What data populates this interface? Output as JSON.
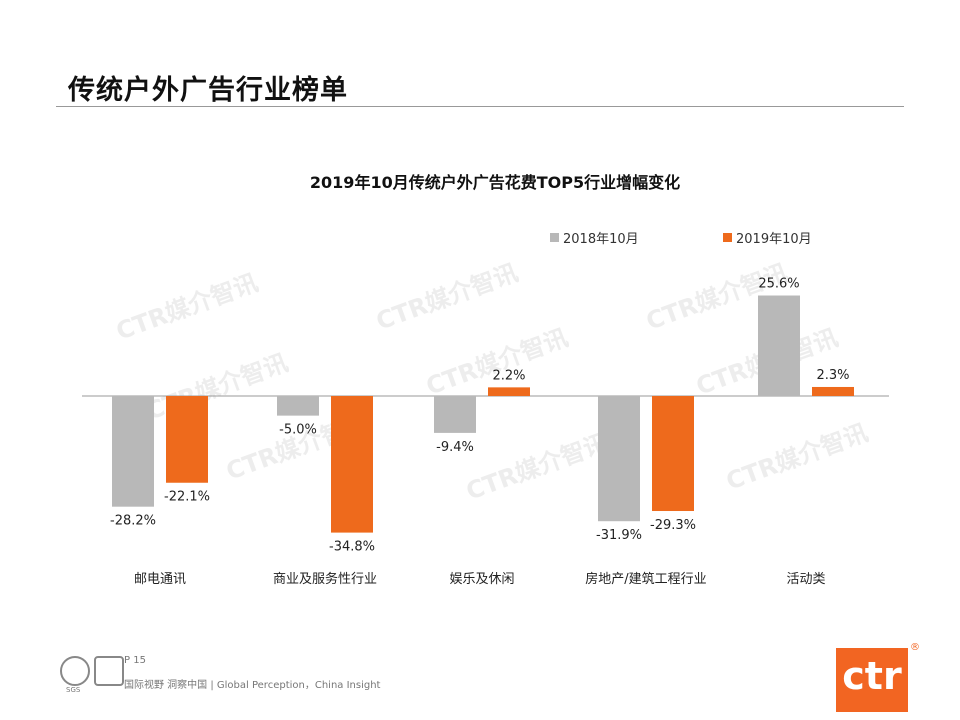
{
  "page": {
    "title": "传统户外广告行业榜单"
  },
  "footer": {
    "page_number": "P 15",
    "tagline": "国际视野  洞察中国 | Global Perception，China Insight",
    "cert_label": "SGS",
    "logo_text": "ctr",
    "logo_mark": "®"
  },
  "watermark": "CTR媒介智讯",
  "colors": {
    "gray": "#b8b8b8",
    "orange": "#ee6a1c"
  },
  "chart_data": {
    "type": "bar",
    "title": "2019年10月传统户外广告花费TOP5行业增幅变化",
    "categories": [
      "邮电通讯",
      "商业及服务性行业",
      "娱乐及休闲",
      "房地产/建筑工程行业",
      "活动类"
    ],
    "series": [
      {
        "name": "2018年10月",
        "color": "#b8b8b8",
        "values": [
          -28.2,
          -5.0,
          -9.4,
          -31.9,
          25.6
        ],
        "labels": [
          "-28.2%",
          "-5.0%",
          "-9.4%",
          "-31.9%",
          "25.6%"
        ]
      },
      {
        "name": "2019年10月",
        "color": "#ee6a1c",
        "values": [
          -22.1,
          -34.8,
          2.2,
          -29.3,
          2.3
        ],
        "labels": [
          "-22.1%",
          "-34.8%",
          "2.2%",
          "-29.3%",
          "2.3%"
        ]
      }
    ],
    "ylim": [
      -35,
      26
    ],
    "legend_position": "top-right",
    "grid": false
  }
}
